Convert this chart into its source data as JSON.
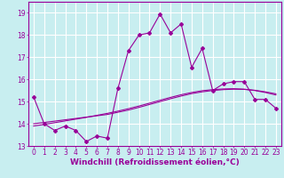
{
  "xlabel": "Windchill (Refroidissement éolien,°C)",
  "background_color": "#c8eef0",
  "grid_color": "#ffffff",
  "line_color": "#990099",
  "x_values": [
    0,
    1,
    2,
    3,
    4,
    5,
    6,
    7,
    8,
    9,
    10,
    11,
    12,
    13,
    14,
    15,
    16,
    17,
    18,
    19,
    20,
    21,
    22,
    23
  ],
  "y_main": [
    15.2,
    14.0,
    13.7,
    13.9,
    13.7,
    13.2,
    13.45,
    13.35,
    15.6,
    17.3,
    18.0,
    18.1,
    18.95,
    18.1,
    18.5,
    16.55,
    17.4,
    15.5,
    15.8,
    15.9,
    15.9,
    15.1,
    15.1,
    14.7
  ],
  "y_trend1": [
    14.0,
    14.06,
    14.12,
    14.18,
    14.24,
    14.3,
    14.36,
    14.42,
    14.52,
    14.62,
    14.74,
    14.87,
    15.0,
    15.13,
    15.25,
    15.36,
    15.44,
    15.5,
    15.54,
    15.56,
    15.55,
    15.51,
    15.44,
    15.35
  ],
  "y_trend2": [
    13.9,
    13.97,
    14.05,
    14.13,
    14.21,
    14.29,
    14.38,
    14.47,
    14.57,
    14.68,
    14.8,
    14.93,
    15.06,
    15.19,
    15.31,
    15.41,
    15.49,
    15.54,
    15.57,
    15.58,
    15.56,
    15.5,
    15.41,
    15.3
  ],
  "ylim": [
    13.0,
    19.5
  ],
  "xlim": [
    -0.5,
    23.5
  ],
  "yticks": [
    13,
    14,
    15,
    16,
    17,
    18,
    19
  ],
  "xticks": [
    0,
    1,
    2,
    3,
    4,
    5,
    6,
    7,
    8,
    9,
    10,
    11,
    12,
    13,
    14,
    15,
    16,
    17,
    18,
    19,
    20,
    21,
    22,
    23
  ],
  "tick_fontsize": 5.5,
  "xlabel_fontsize": 6.5,
  "marker": "D",
  "markersize": 2.0,
  "linewidth": 0.8
}
